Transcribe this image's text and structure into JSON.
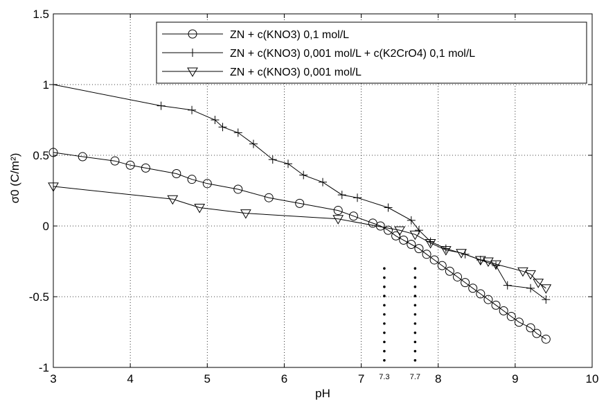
{
  "chart_data": {
    "type": "line",
    "xlabel": "pH",
    "ylabel": "σ0 (C/m²)",
    "xlim": [
      3,
      10
    ],
    "ylim": [
      -1,
      1.5
    ],
    "xticks": [
      3,
      4,
      5,
      6,
      7,
      8,
      9,
      10
    ],
    "yticks": [
      -1,
      -0.5,
      0,
      0.5,
      1,
      1.5
    ],
    "xtick_labels": [
      "3",
      "4",
      "5",
      "6",
      "7",
      "8",
      "9",
      "10"
    ],
    "ytick_labels": [
      "-1",
      "-0.5",
      "0",
      "0.5",
      "1",
      "1.5"
    ],
    "grid": true,
    "legend_position": "top-right",
    "annotations": [
      {
        "text": "7.3",
        "x": 7.3
      },
      {
        "text": "7.7",
        "x": 7.7
      }
    ],
    "series": [
      {
        "name": "ZN + c(KNO3) 0,1 mol/L",
        "marker": "circle",
        "x": [
          3.0,
          3.38,
          3.8,
          4.0,
          4.2,
          4.6,
          4.8,
          5.0,
          5.4,
          5.8,
          6.2,
          6.7,
          6.9,
          7.15,
          7.25,
          7.35,
          7.45,
          7.55,
          7.65,
          7.75,
          7.85,
          7.95,
          8.05,
          8.15,
          8.25,
          8.35,
          8.45,
          8.55,
          8.65,
          8.75,
          8.85,
          8.95,
          9.05,
          9.2,
          9.28,
          9.4
        ],
        "y": [
          0.52,
          0.49,
          0.46,
          0.43,
          0.41,
          0.37,
          0.33,
          0.3,
          0.26,
          0.2,
          0.16,
          0.11,
          0.07,
          0.02,
          0.0,
          -0.03,
          -0.07,
          -0.1,
          -0.13,
          -0.16,
          -0.2,
          -0.24,
          -0.28,
          -0.32,
          -0.36,
          -0.4,
          -0.44,
          -0.48,
          -0.52,
          -0.56,
          -0.6,
          -0.64,
          -0.68,
          -0.72,
          -0.76,
          -0.8
        ]
      },
      {
        "name": "ZN + c(KNO3) 0,001 mol/L + c(K2CrO4) 0,1 mol/L",
        "marker": "plus",
        "x": [
          3.0,
          4.4,
          4.8,
          5.1,
          5.2,
          5.4,
          5.6,
          5.85,
          6.05,
          6.25,
          6.5,
          6.75,
          6.95,
          7.35,
          7.65,
          7.75,
          7.9,
          8.1,
          8.35,
          8.55,
          8.75,
          8.9,
          9.2,
          9.4
        ],
        "y": [
          1.0,
          0.85,
          0.82,
          0.75,
          0.7,
          0.66,
          0.58,
          0.47,
          0.44,
          0.36,
          0.31,
          0.22,
          0.2,
          0.13,
          0.04,
          -0.03,
          -0.11,
          -0.16,
          -0.2,
          -0.24,
          -0.28,
          -0.42,
          -0.44,
          -0.52
        ]
      },
      {
        "name": "ZN + c(KNO3) 0,001 mol/L",
        "marker": "triangle-down",
        "x": [
          3.0,
          4.55,
          4.9,
          5.5,
          6.7,
          7.5,
          7.7,
          7.9,
          8.1,
          8.3,
          8.55,
          8.65,
          8.75,
          9.1,
          9.2,
          9.3,
          9.4
        ],
        "y": [
          0.28,
          0.19,
          0.13,
          0.09,
          0.05,
          -0.03,
          -0.06,
          -0.12,
          -0.17,
          -0.19,
          -0.24,
          -0.25,
          -0.27,
          -0.32,
          -0.34,
          -0.4,
          -0.44
        ]
      }
    ]
  }
}
